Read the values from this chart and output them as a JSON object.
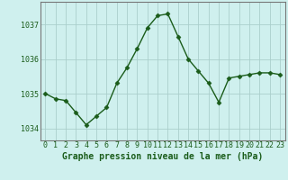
{
  "x": [
    0,
    1,
    2,
    3,
    4,
    5,
    6,
    7,
    8,
    9,
    10,
    11,
    12,
    13,
    14,
    15,
    16,
    17,
    18,
    19,
    20,
    21,
    22,
    23
  ],
  "y": [
    1035.0,
    1034.85,
    1034.8,
    1034.45,
    1034.1,
    1034.35,
    1034.6,
    1035.3,
    1035.75,
    1036.3,
    1036.9,
    1037.25,
    1037.3,
    1036.65,
    1036.0,
    1035.65,
    1035.3,
    1034.75,
    1035.45,
    1035.5,
    1035.55,
    1035.6,
    1035.6,
    1035.55
  ],
  "line_color": "#1a5c1a",
  "marker": "D",
  "marker_size": 2.5,
  "bg_color": "#cff0ee",
  "grid_color": "#aacfcc",
  "xlabel": "Graphe pression niveau de la mer (hPa)",
  "xlabel_fontsize": 7.0,
  "ylabel_ticks": [
    1034,
    1035,
    1036,
    1037
  ],
  "xtick_labels": [
    "0",
    "1",
    "2",
    "3",
    "4",
    "5",
    "6",
    "7",
    "8",
    "9",
    "10",
    "11",
    "12",
    "13",
    "14",
    "15",
    "16",
    "17",
    "18",
    "19",
    "20",
    "21",
    "22",
    "23"
  ],
  "ylim": [
    1033.65,
    1037.65
  ],
  "xlim": [
    -0.5,
    23.5
  ],
  "tick_color": "#1a5c1a",
  "tick_fontsize": 6.0,
  "border_color": "#777777",
  "linewidth": 1.0
}
